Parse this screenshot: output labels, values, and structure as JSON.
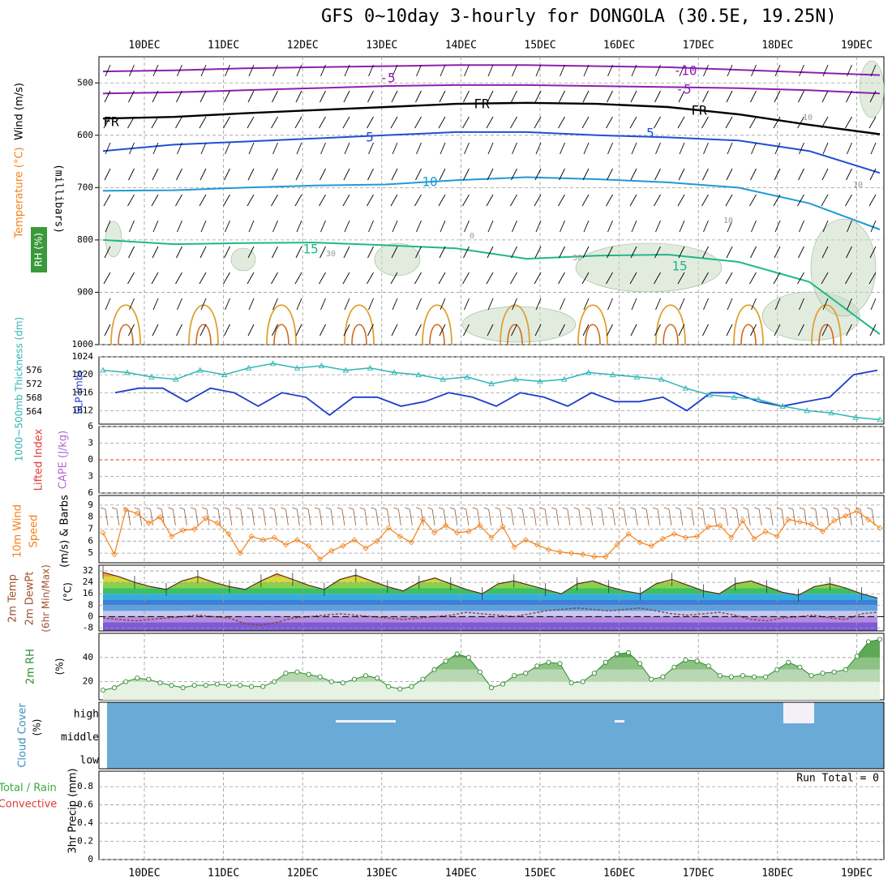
{
  "title": "GFS 0~10day 3-hourly for DONGOLA (30.5E, 19.25N)",
  "colors": {
    "grid": "#999999",
    "temp": "#f57f17",
    "wind": "#f57f17",
    "rh": "#2e8b2e",
    "cloud": "#6aaad6",
    "cloudGap": "#f4f0fa",
    "thickness": "#2fb5b5",
    "slp": "#1e3cc8",
    "lifted": "#e53935"
  },
  "chart_data": [
    {
      "type": "line",
      "panel": "upper-air",
      "ylabel_parts": [
        "Wind (m/s)",
        "Temperature (°C)",
        "RH (%)"
      ],
      "ylabel_unit": "(millibars)",
      "x_ticks": [
        "10DEC",
        "11DEC",
        "12DEC",
        "13DEC",
        "14DEC",
        "15DEC",
        "16DEC",
        "17DEC",
        "18DEC",
        "19DEC"
      ],
      "y_ticks": [
        500,
        600,
        700,
        800,
        900,
        1000
      ],
      "ylim": [
        450,
        1000
      ],
      "contour_labels": [
        "-10",
        "-5",
        "-5",
        "FR",
        "FR",
        "FR",
        "5",
        "5",
        "10",
        "15",
        "15",
        "30",
        "30",
        "10",
        "0",
        "10",
        "10"
      ],
      "isotherms": [
        {
          "name": "-10",
          "color": "#8e1fb0",
          "values": [
            478,
            476,
            472,
            470,
            468,
            466,
            466,
            468,
            470,
            475,
            480,
            485
          ]
        },
        {
          "name": "-5",
          "color": "#8e1fb0",
          "values": [
            520,
            518,
            514,
            510,
            506,
            504,
            504,
            506,
            508,
            510,
            514,
            520
          ]
        },
        {
          "name": "FR",
          "color": "#000000",
          "values": [
            568,
            565,
            558,
            552,
            546,
            540,
            538,
            540,
            546,
            560,
            580,
            598
          ]
        },
        {
          "name": "5",
          "color": "#1f4fd6",
          "values": [
            630,
            618,
            612,
            606,
            600,
            594,
            594,
            600,
            604,
            610,
            630,
            672
          ]
        },
        {
          "name": "10",
          "color": "#1f9ad6",
          "values": [
            706,
            705,
            700,
            696,
            694,
            686,
            680,
            684,
            690,
            700,
            730,
            780
          ]
        },
        {
          "name": "15",
          "color": "#1fb888",
          "values": [
            800,
            808,
            806,
            805,
            810,
            816,
            836,
            830,
            828,
            842,
            880,
            980
          ]
        }
      ]
    },
    {
      "type": "line",
      "panel": "thickness-slp",
      "ylabel_left": "1000~500mb Thickness (dm)",
      "ylabel_right": "SLP (mb)",
      "y_ticks_left": [
        564,
        568,
        572,
        576
      ],
      "y_ticks_right": [
        1012,
        1016,
        1020,
        1024
      ],
      "ylim_right": [
        1009,
        1024
      ],
      "series": [
        {
          "name": "SLP",
          "values": [
            1016,
            1017,
            1017,
            1014,
            1017,
            1016,
            1013,
            1016,
            1015,
            1011,
            1015,
            1015,
            1013,
            1014,
            1016,
            1015,
            1013,
            1016,
            1015,
            1013,
            1016,
            1014,
            1014,
            1015,
            1012,
            1016,
            1016,
            1014,
            1013,
            1014,
            1015,
            1020,
            1021
          ]
        },
        {
          "name": "Thickness",
          "values": [
            1021,
            1020.5,
            1019.5,
            1019,
            1021,
            1020,
            1021.5,
            1022.5,
            1021.5,
            1022,
            1021,
            1021.5,
            1020.5,
            1020,
            1019,
            1019.5,
            1018,
            1019,
            1018.5,
            1019,
            1020.5,
            1020,
            1019.5,
            1019,
            1017,
            1015.5,
            1015,
            1014.5,
            1013,
            1012,
            1011.5,
            1010.5,
            1010
          ]
        }
      ]
    },
    {
      "type": "line",
      "panel": "lifted-cape",
      "ylabel_left": "Lifted Index",
      "ylabel_right": "CAPE (J/kg)",
      "y_ticks": [
        -6,
        -3,
        0,
        3,
        6
      ],
      "tick_labels": [
        "6",
        "3",
        "0",
        "3",
        "6"
      ],
      "ylim": [
        -6,
        6
      ]
    },
    {
      "type": "line",
      "panel": "wind10m",
      "ylabel_left": "10m Wind Speed",
      "ylabel_right": "(m/s) & Barbs",
      "y_ticks": [
        5,
        6,
        7,
        8,
        9
      ],
      "ylim": [
        4.2,
        9.8
      ],
      "values": [
        6.7,
        4.9,
        8.6,
        8.3,
        7.5,
        8,
        6.4,
        6.9,
        7,
        7.9,
        7.5,
        6.6,
        5,
        6.4,
        6.1,
        6.3,
        5.7,
        6.1,
        5.6,
        4.5,
        5.2,
        5.6,
        6.1,
        5.4,
        6,
        7.1,
        6.4,
        5.9,
        7.8,
        6.7,
        7.3,
        6.7,
        6.8,
        7.3,
        6.3,
        7.2,
        5.5,
        6.1,
        5.7,
        5.3,
        5.1,
        5,
        4.9,
        4.7,
        4.7,
        5.7,
        6.6,
        5.9,
        5.6,
        6.2,
        6.6,
        6.3,
        6.4,
        7.2,
        7.3,
        6.3,
        7.7,
        6.2,
        6.8,
        6.4,
        7.8,
        7.6,
        7.4,
        6.8,
        7.7,
        8.1,
        8.5,
        7.8,
        7.1
      ]
    },
    {
      "type": "area",
      "panel": "temp2m",
      "ylabel_parts": [
        "2m Temp",
        "2m DewPt",
        "(6hr Min/Max)",
        "(°C)"
      ],
      "y_ticks": [
        -8,
        0,
        8,
        16,
        24,
        32
      ],
      "tick_labels": [
        "-8",
        "0",
        "8",
        "16",
        "24",
        "32"
      ],
      "ylim": [
        -10,
        36
      ],
      "temp": [
        31,
        28,
        24,
        21,
        19,
        25,
        28,
        24,
        21,
        19,
        25,
        30,
        26,
        22,
        19,
        26,
        29,
        25,
        21,
        18,
        24,
        27,
        23,
        19,
        16,
        23,
        25,
        22,
        19,
        16,
        23,
        25,
        21,
        18,
        16,
        23,
        26,
        22,
        18,
        16,
        23,
        25,
        21,
        17,
        15,
        21,
        23,
        20,
        16,
        13
      ],
      "dewpt": [
        -1,
        -2,
        -3,
        -2,
        -1,
        0,
        1,
        0,
        -1,
        -5,
        -6,
        -4,
        -1,
        0,
        1,
        2,
        1,
        0,
        -1,
        -2,
        -1,
        0,
        1,
        3,
        2,
        1,
        0,
        2,
        4,
        5,
        6,
        5,
        4,
        5,
        6,
        4,
        2,
        1,
        2,
        3,
        1,
        -2,
        -3,
        -1,
        0,
        1,
        -1,
        -2,
        2,
        3
      ]
    },
    {
      "type": "area",
      "panel": "rh2m",
      "ylabel_parts": [
        "2m RH",
        "(%)"
      ],
      "y_ticks": [
        20,
        40
      ],
      "ylim": [
        5,
        60
      ],
      "values": [
        13,
        15,
        20,
        23,
        22,
        19,
        17,
        15,
        17,
        17,
        18,
        17,
        17,
        16,
        16,
        20,
        27,
        28,
        26,
        24,
        20,
        19,
        22,
        25,
        23,
        16,
        14,
        16,
        22,
        30,
        37,
        43,
        40,
        28,
        15,
        18,
        25,
        27,
        33,
        36,
        35,
        19,
        20,
        27,
        36,
        43,
        44,
        35,
        22,
        24,
        32,
        38,
        37,
        33,
        25,
        24,
        25,
        24,
        24,
        30,
        36,
        32,
        25,
        27,
        28,
        30,
        41,
        53,
        55
      ]
    },
    {
      "type": "heatmap",
      "panel": "cloud",
      "ylabel_parts": [
        "Cloud Cover",
        "(%)"
      ],
      "levels": [
        "high",
        "middle",
        "low"
      ]
    },
    {
      "type": "bar",
      "panel": "precip",
      "ylabel_left": "Total / Rain",
      "ylabel_left2": "Convective",
      "ylabel_right": "3hr Precip (mm)",
      "annotation": "Run Total = 0",
      "y_ticks": [
        0,
        0.2,
        0.4,
        0.6,
        0.8
      ],
      "tick_labels": [
        "0",
        "0.2",
        "0.4",
        "0.6",
        "0.8"
      ],
      "ylim": [
        0,
        0.97
      ],
      "values": []
    }
  ]
}
